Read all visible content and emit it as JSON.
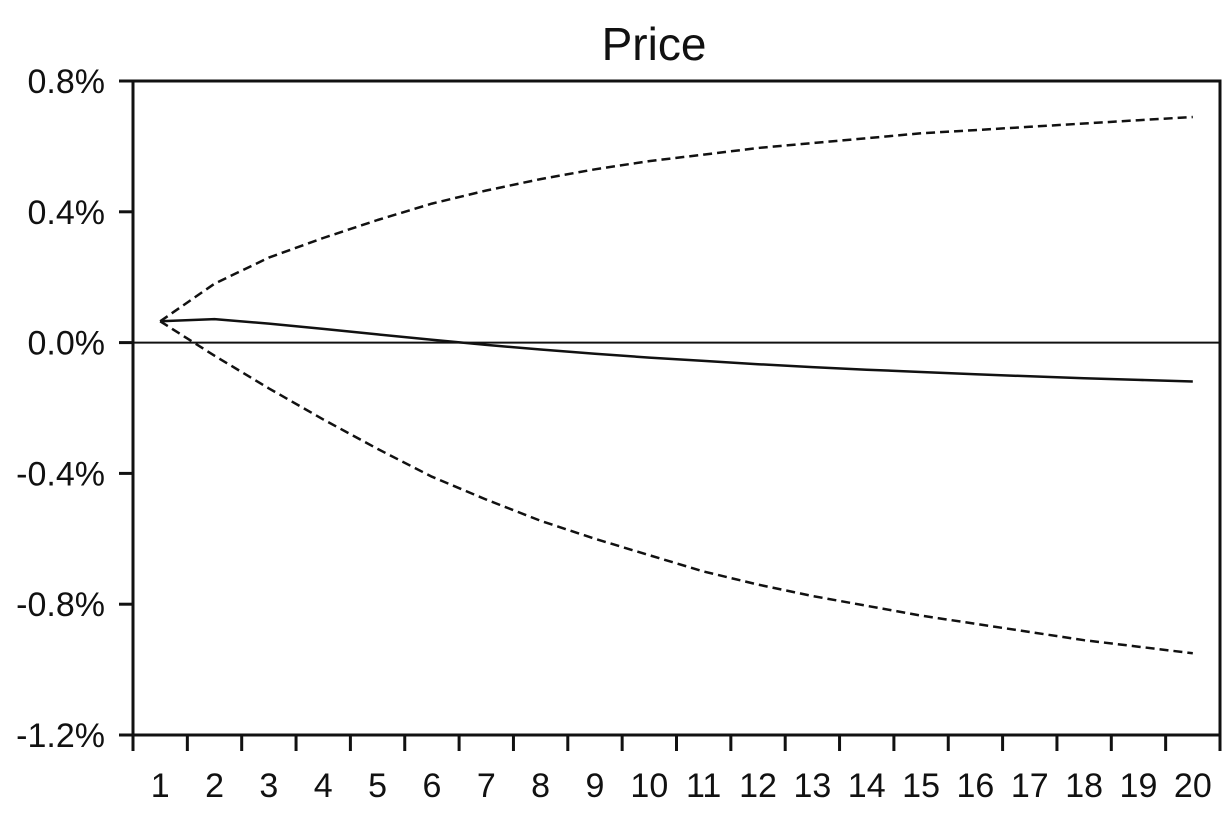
{
  "chart_data": {
    "type": "line",
    "title": "Price",
    "xlabel": "",
    "ylabel": "",
    "x": [
      1,
      2,
      3,
      4,
      5,
      6,
      7,
      8,
      9,
      10,
      11,
      12,
      13,
      14,
      15,
      16,
      17,
      18,
      19,
      20
    ],
    "xlim": [
      0.5,
      20.5
    ],
    "ylim": [
      -1.2,
      0.8
    ],
    "y_ticks": [
      0.8,
      0.4,
      0.0,
      -0.4,
      -0.8,
      -1.2
    ],
    "y_tick_labels": [
      "0.8%",
      "0.4%",
      "0.0%",
      "-0.4%",
      "-0.8%",
      "-1.2%"
    ],
    "x_tick_labels": [
      "1",
      "2",
      "3",
      "4",
      "5",
      "6",
      "7",
      "8",
      "9",
      "10",
      "11",
      "12",
      "13",
      "14",
      "15",
      "16",
      "17",
      "18",
      "19",
      "20"
    ],
    "grid": false,
    "legend": "none",
    "zero_line": true,
    "series": [
      {
        "style": "solid",
        "values": [
          0.065,
          0.072,
          0.058,
          0.042,
          0.025,
          0.009,
          -0.007,
          -0.021,
          -0.034,
          -0.046,
          -0.056,
          -0.066,
          -0.075,
          -0.083,
          -0.09,
          -0.097,
          -0.103,
          -0.109,
          -0.114,
          -0.119
        ]
      },
      {
        "style": "dashed",
        "values": [
          0.065,
          0.18,
          0.26,
          0.32,
          0.375,
          0.425,
          0.465,
          0.5,
          0.53,
          0.555,
          0.575,
          0.595,
          0.61,
          0.625,
          0.64,
          0.65,
          0.66,
          0.67,
          0.68,
          0.69
        ]
      },
      {
        "style": "dashed",
        "values": [
          0.065,
          -0.04,
          -0.14,
          -0.235,
          -0.325,
          -0.41,
          -0.48,
          -0.545,
          -0.6,
          -0.65,
          -0.7,
          -0.74,
          -0.775,
          -0.805,
          -0.835,
          -0.86,
          -0.885,
          -0.91,
          -0.93,
          -0.95
        ]
      }
    ],
    "colors": {
      "line": "#111111",
      "frame": "#111111",
      "background": "#ffffff"
    }
  }
}
